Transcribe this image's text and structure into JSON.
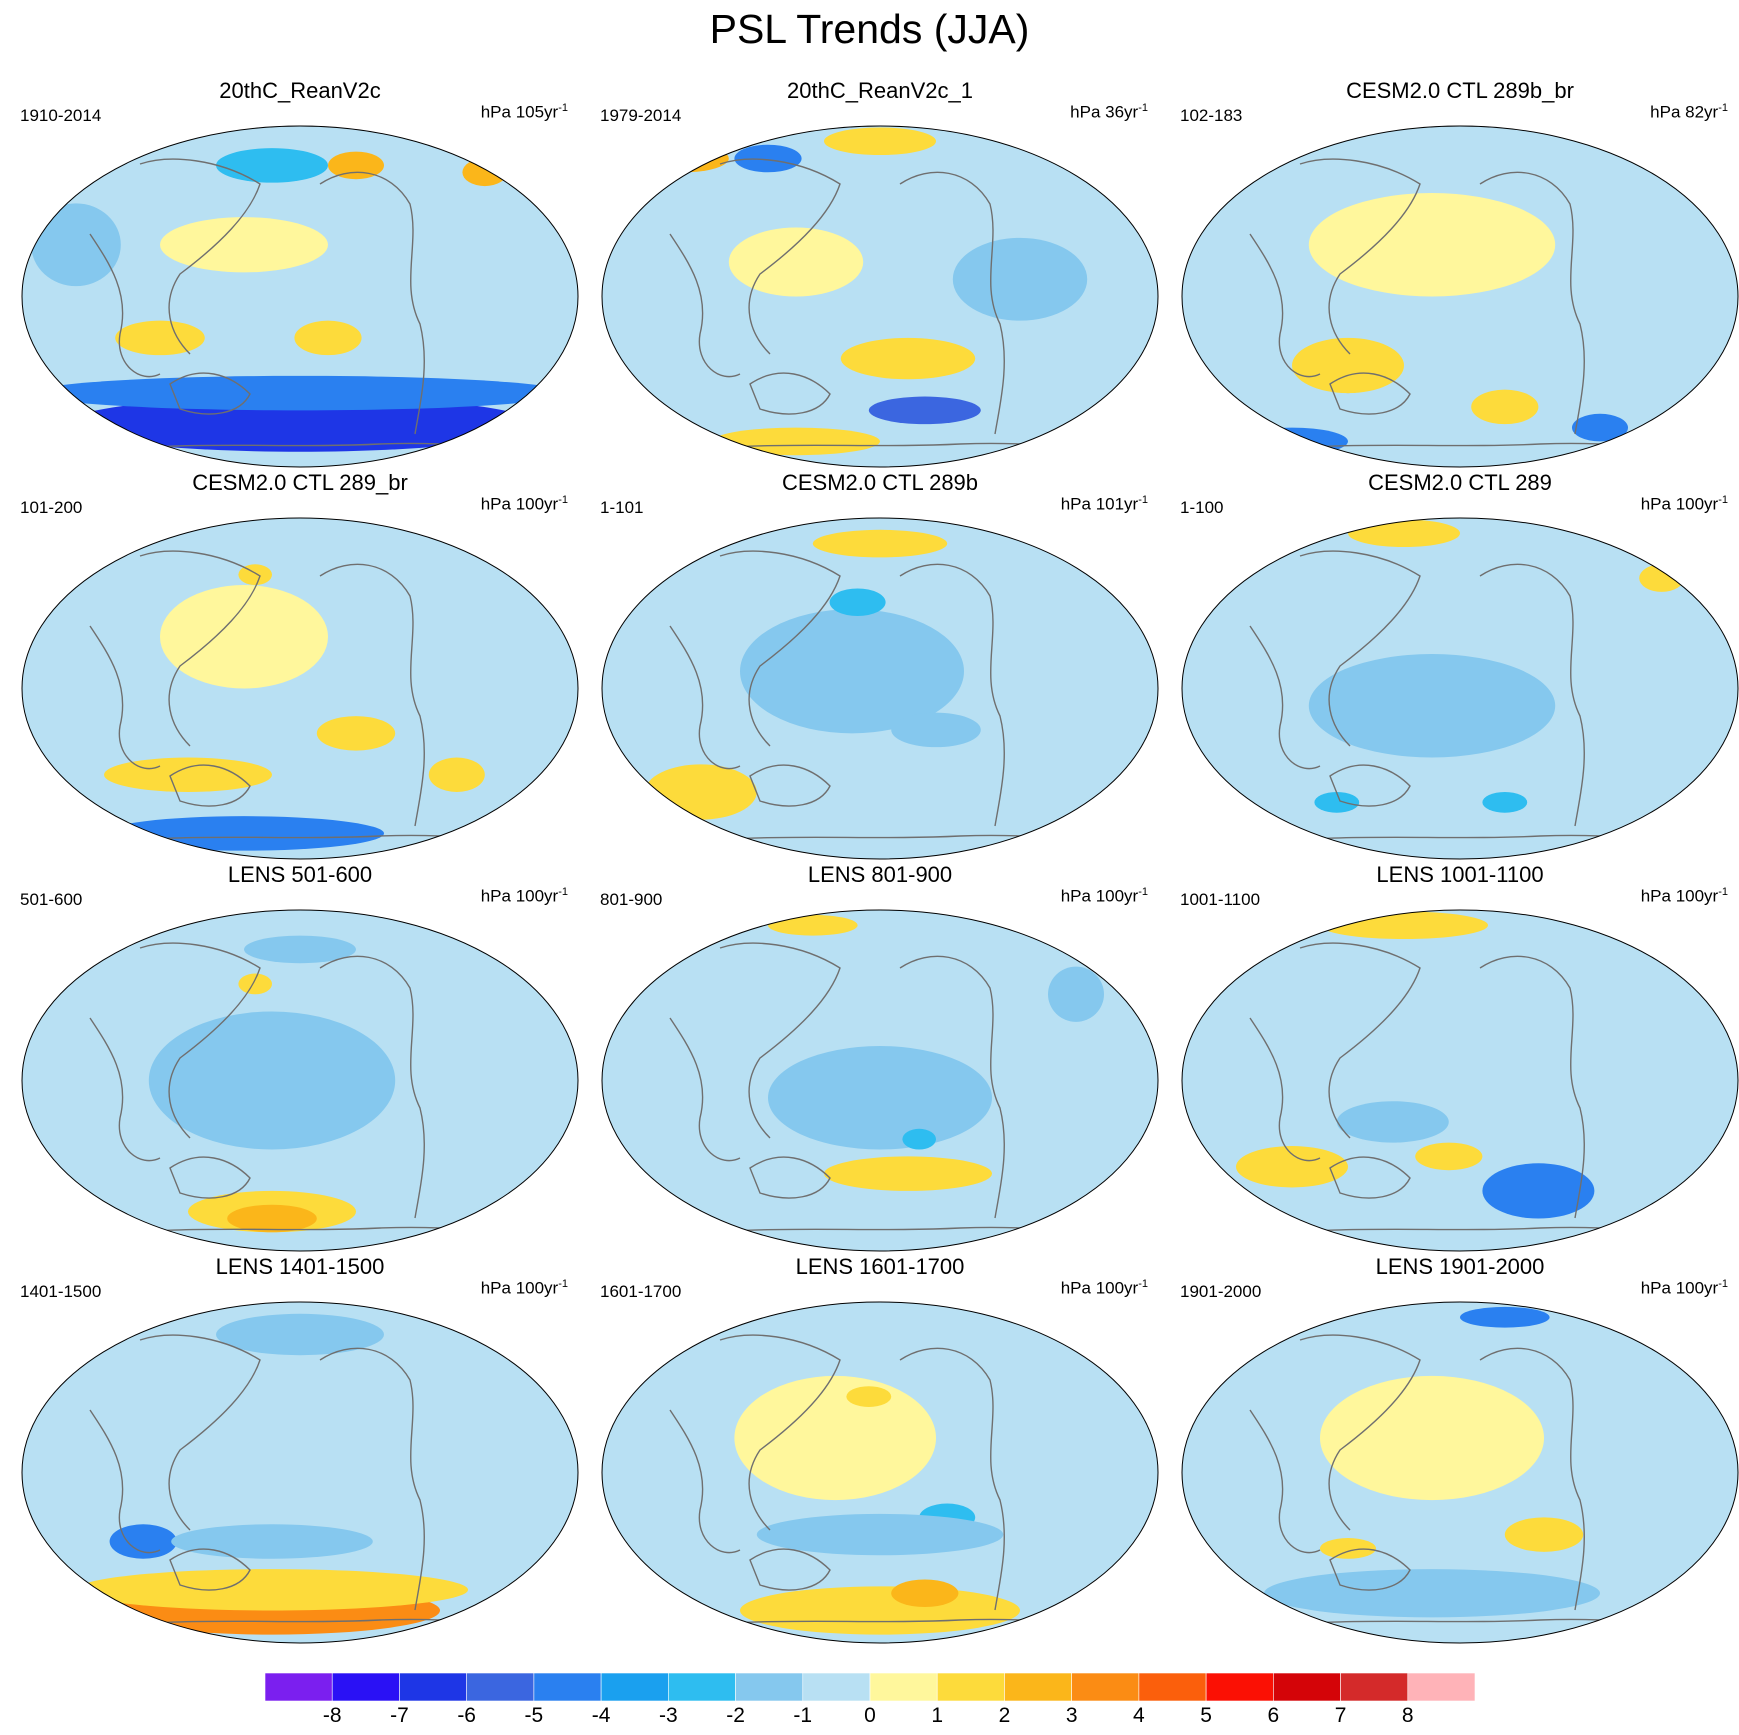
{
  "title": "PSL Trends (JJA)",
  "colorbar": {
    "colors": [
      "#7b1fef",
      "#2a11f5",
      "#1e36e6",
      "#3b66e0",
      "#2a80f0",
      "#1aa0ef",
      "#2ebdf0",
      "#85c8ee",
      "#b8e0f3",
      "#fff79c",
      "#fddb3b",
      "#fbb61a",
      "#fb8c14",
      "#fb5f0c",
      "#fb1004",
      "#d40408",
      "#d42a2a",
      "#ffb3b8"
    ],
    "labels": [
      "-8",
      "-7",
      "-6",
      "-5",
      "-4",
      "-3",
      "-2",
      "-1",
      "0",
      "1",
      "2",
      "3",
      "4",
      "5",
      "6",
      "7",
      "8"
    ]
  },
  "panels": [
    {
      "title": "20thC_ReanV2c",
      "period": "1910-2014",
      "units": "hPa 105yr",
      "exp": "-1",
      "blobs": [
        [
          "#1e36e6",
          0.5,
          0.87,
          0.42,
          0.08
        ],
        [
          "#2a80f0",
          0.5,
          0.78,
          0.48,
          0.05
        ],
        [
          "#fddb3b",
          0.25,
          0.62,
          0.08,
          0.05
        ],
        [
          "#fddb3b",
          0.55,
          0.62,
          0.06,
          0.05
        ],
        [
          "#2ebdf0",
          0.45,
          0.12,
          0.1,
          0.05
        ],
        [
          "#fbb61a",
          0.6,
          0.12,
          0.05,
          0.04
        ],
        [
          "#fbb61a",
          0.83,
          0.14,
          0.04,
          0.04
        ],
        [
          "#85c8ee",
          0.1,
          0.35,
          0.08,
          0.12
        ],
        [
          "#fff79c",
          0.4,
          0.35,
          0.15,
          0.08
        ]
      ]
    },
    {
      "title": "20thC_ReanV2c_1",
      "period": "1979-2014",
      "units": "hPa 36yr",
      "exp": "-1",
      "blobs": [
        [
          "#fddb3b",
          0.55,
          0.68,
          0.12,
          0.06
        ],
        [
          "#3b66e0",
          0.58,
          0.83,
          0.1,
          0.04
        ],
        [
          "#fddb3b",
          0.35,
          0.92,
          0.15,
          0.04
        ],
        [
          "#fbb61a",
          0.15,
          0.1,
          0.08,
          0.04
        ],
        [
          "#2a80f0",
          0.3,
          0.1,
          0.06,
          0.04
        ],
        [
          "#fddb3b",
          0.5,
          0.05,
          0.1,
          0.04
        ],
        [
          "#85c8ee",
          0.75,
          0.45,
          0.12,
          0.12
        ],
        [
          "#fff79c",
          0.35,
          0.4,
          0.12,
          0.1
        ]
      ]
    },
    {
      "title": "CESM2.0 CTL 289b_br",
      "period": "102-183",
      "units": "hPa 82yr",
      "exp": "-1",
      "blobs": [
        [
          "#fb8c14",
          0.3,
          0.73,
          0.06,
          0.05
        ],
        [
          "#fddb3b",
          0.3,
          0.7,
          0.1,
          0.08
        ],
        [
          "#fddb3b",
          0.58,
          0.82,
          0.06,
          0.05
        ],
        [
          "#2a80f0",
          0.75,
          0.88,
          0.05,
          0.04
        ],
        [
          "#2a80f0",
          0.2,
          0.92,
          0.1,
          0.04
        ],
        [
          "#fff79c",
          0.45,
          0.35,
          0.22,
          0.15
        ]
      ]
    },
    {
      "title": "CESM2.0 CTL 289_br",
      "period": "101-200",
      "units": "hPa 100yr",
      "exp": "-1",
      "blobs": [
        [
          "#fddb3b",
          0.3,
          0.75,
          0.15,
          0.05
        ],
        [
          "#fddb3b",
          0.6,
          0.63,
          0.07,
          0.05
        ],
        [
          "#fddb3b",
          0.78,
          0.75,
          0.05,
          0.05
        ],
        [
          "#2a80f0",
          0.4,
          0.92,
          0.25,
          0.05
        ],
        [
          "#fddb3b",
          0.42,
          0.17,
          0.03,
          0.03
        ],
        [
          "#fff79c",
          0.4,
          0.35,
          0.15,
          0.15
        ]
      ]
    },
    {
      "title": "CESM2.0 CTL 289b",
      "period": "1-101",
      "units": "hPa 101yr",
      "exp": "-1",
      "blobs": [
        [
          "#fb8c14",
          0.18,
          0.82,
          0.06,
          0.06
        ],
        [
          "#fddb3b",
          0.18,
          0.8,
          0.1,
          0.08
        ],
        [
          "#85c8ee",
          0.45,
          0.45,
          0.2,
          0.18
        ],
        [
          "#2ebdf0",
          0.46,
          0.25,
          0.05,
          0.04
        ],
        [
          "#85c8ee",
          0.6,
          0.62,
          0.08,
          0.05
        ],
        [
          "#fddb3b",
          0.5,
          0.08,
          0.12,
          0.04
        ]
      ]
    },
    {
      "title": "CESM2.0 CTL 289",
      "period": "1-100",
      "units": "hPa 100yr",
      "exp": "-1",
      "blobs": [
        [
          "#85c8ee",
          0.45,
          0.55,
          0.22,
          0.15
        ],
        [
          "#2ebdf0",
          0.28,
          0.83,
          0.04,
          0.03
        ],
        [
          "#2ebdf0",
          0.58,
          0.83,
          0.04,
          0.03
        ],
        [
          "#fddb3b",
          0.4,
          0.05,
          0.1,
          0.04
        ],
        [
          "#fddb3b",
          0.86,
          0.18,
          0.04,
          0.04
        ]
      ]
    },
    {
      "title": "LENS 501-600",
      "period": "501-600",
      "units": "hPa 100yr",
      "exp": "-1",
      "blobs": [
        [
          "#fddb3b",
          0.45,
          0.88,
          0.15,
          0.06
        ],
        [
          "#fbb61a",
          0.45,
          0.9,
          0.08,
          0.04
        ],
        [
          "#85c8ee",
          0.45,
          0.5,
          0.22,
          0.2
        ],
        [
          "#85c8ee",
          0.5,
          0.12,
          0.1,
          0.04
        ],
        [
          "#fddb3b",
          0.42,
          0.22,
          0.03,
          0.03
        ]
      ]
    },
    {
      "title": "LENS 801-900",
      "period": "801-900",
      "units": "hPa 100yr",
      "exp": "-1",
      "blobs": [
        [
          "#fddb3b",
          0.55,
          0.77,
          0.15,
          0.05
        ],
        [
          "#85c8ee",
          0.5,
          0.55,
          0.2,
          0.15
        ],
        [
          "#2ebdf0",
          0.57,
          0.67,
          0.03,
          0.03
        ],
        [
          "#fddb3b",
          0.38,
          0.05,
          0.08,
          0.03
        ],
        [
          "#85c8ee",
          0.85,
          0.25,
          0.05,
          0.08
        ]
      ]
    },
    {
      "title": "LENS 1001-1100",
      "period": "1001-1100",
      "units": "hPa 100yr",
      "exp": "-1",
      "blobs": [
        [
          "#3b66e0",
          0.64,
          0.82,
          0.08,
          0.06
        ],
        [
          "#2a80f0",
          0.64,
          0.82,
          0.1,
          0.08
        ],
        [
          "#fddb3b",
          0.2,
          0.75,
          0.1,
          0.06
        ],
        [
          "#fddb3b",
          0.48,
          0.72,
          0.06,
          0.04
        ],
        [
          "#fddb3b",
          0.4,
          0.05,
          0.15,
          0.04
        ],
        [
          "#85c8ee",
          0.38,
          0.62,
          0.1,
          0.06
        ]
      ]
    },
    {
      "title": "LENS 1401-1500",
      "period": "1401-1500",
      "units": "hPa 100yr",
      "exp": "-1",
      "blobs": [
        [
          "#fb8c14",
          0.45,
          0.9,
          0.3,
          0.07
        ],
        [
          "#fddb3b",
          0.45,
          0.84,
          0.35,
          0.06
        ],
        [
          "#2a80f0",
          0.22,
          0.7,
          0.06,
          0.05
        ],
        [
          "#85c8ee",
          0.45,
          0.7,
          0.18,
          0.05
        ],
        [
          "#85c8ee",
          0.5,
          0.1,
          0.15,
          0.06
        ]
      ]
    },
    {
      "title": "LENS 1601-1700",
      "period": "1601-1700",
      "units": "hPa 100yr",
      "exp": "-1",
      "blobs": [
        [
          "#fddb3b",
          0.5,
          0.9,
          0.25,
          0.07
        ],
        [
          "#fbb61a",
          0.58,
          0.85,
          0.06,
          0.04
        ],
        [
          "#2ebdf0",
          0.62,
          0.63,
          0.05,
          0.04
        ],
        [
          "#85c8ee",
          0.5,
          0.68,
          0.22,
          0.06
        ],
        [
          "#fff79c",
          0.42,
          0.4,
          0.18,
          0.18
        ],
        [
          "#fddb3b",
          0.48,
          0.28,
          0.04,
          0.03
        ]
      ]
    },
    {
      "title": "LENS 1901-2000",
      "period": "1901-2000",
      "units": "hPa 100yr",
      "exp": "-1",
      "blobs": [
        [
          "#fddb3b",
          0.65,
          0.68,
          0.07,
          0.05
        ],
        [
          "#fddb3b",
          0.3,
          0.72,
          0.05,
          0.03
        ],
        [
          "#85c8ee",
          0.45,
          0.85,
          0.3,
          0.07
        ],
        [
          "#2a80f0",
          0.58,
          0.05,
          0.08,
          0.03
        ],
        [
          "#fff79c",
          0.45,
          0.4,
          0.2,
          0.18
        ]
      ]
    }
  ]
}
